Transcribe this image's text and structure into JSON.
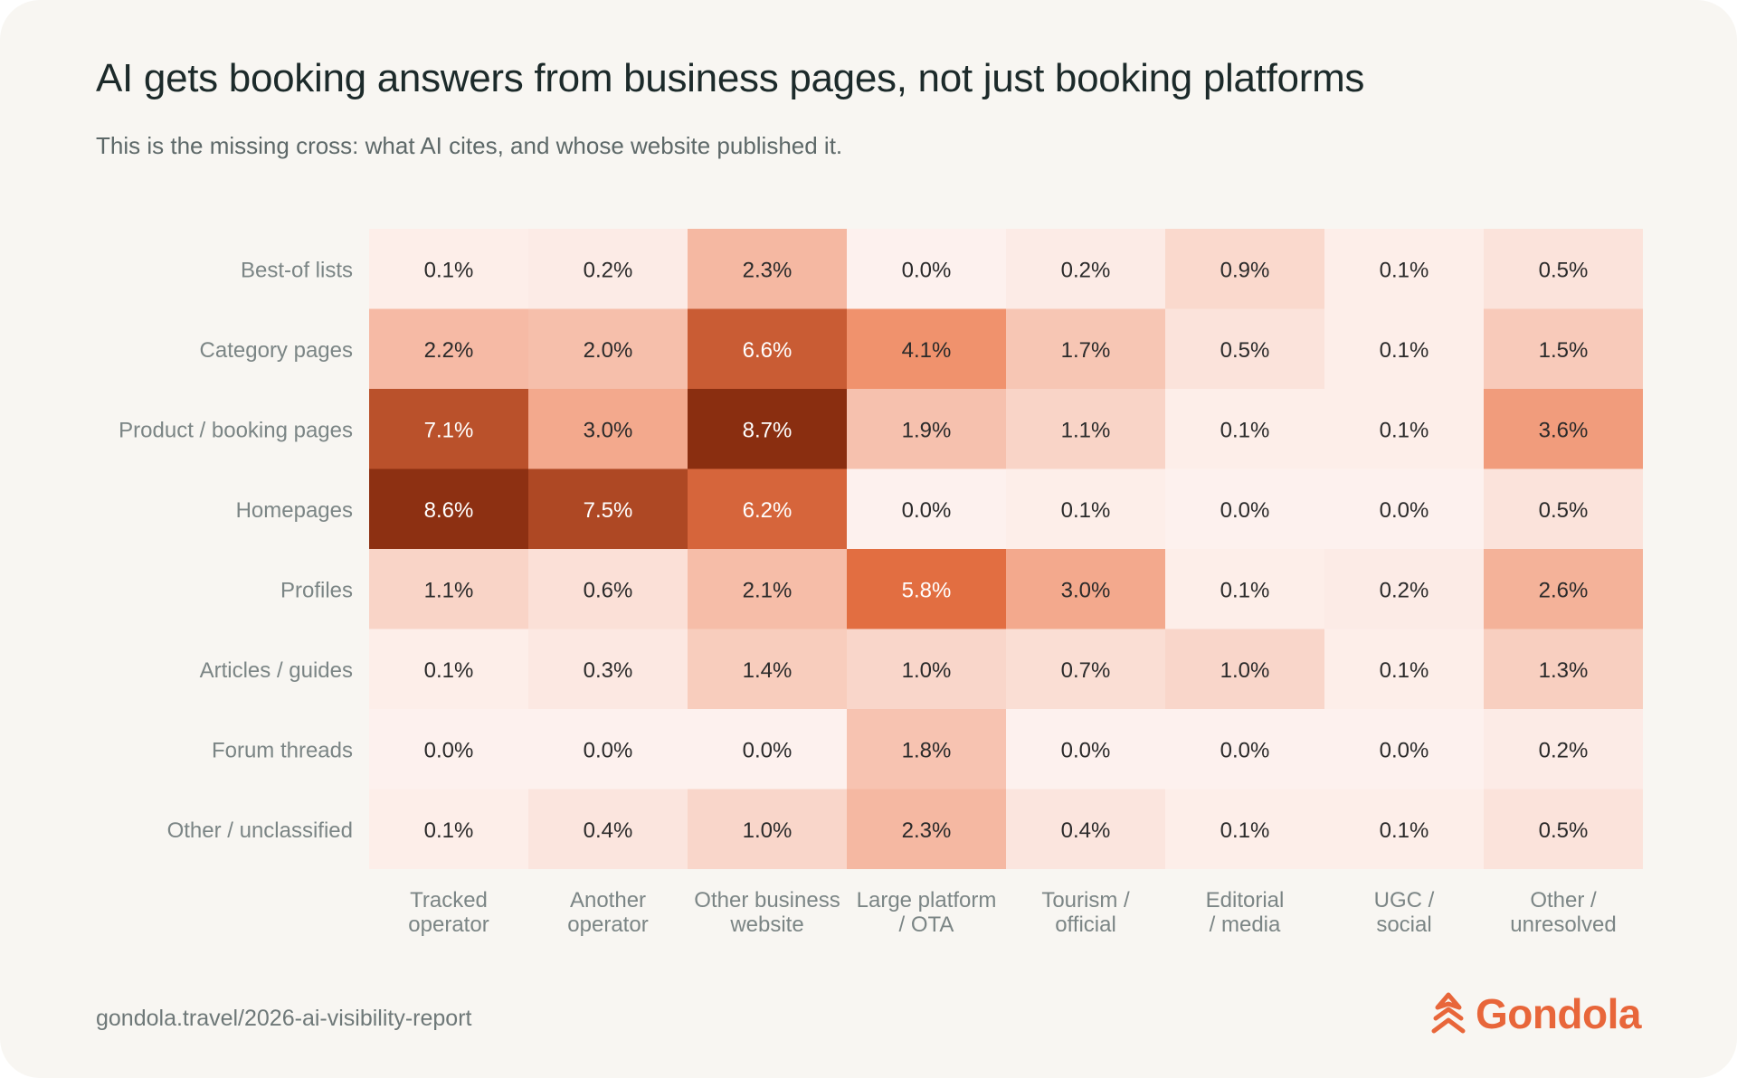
{
  "header": {
    "title": "AI gets booking answers from business pages, not just booking platforms",
    "subtitle": "This is the missing cross: what AI cites, and whose website published it."
  },
  "footer": {
    "url": "gondola.travel/2026-ai-visibility-report",
    "brand": "Gondola",
    "brand_icon": "gondola-logo-icon"
  },
  "colors": {
    "low": "#fdf1ee",
    "mid": "#ec7547",
    "high": "#8a2e10",
    "accent": "#e8663a"
  },
  "chart_data": {
    "type": "heatmap",
    "title": "AI gets booking answers from business pages, not just booking platforms",
    "subtitle": "This is the missing cross: what AI cites, and whose website published it.",
    "value_unit": "%",
    "rows": [
      "Best-of lists",
      "Category pages",
      "Product / booking pages",
      "Homepages",
      "Profiles",
      "Articles / guides",
      "Forum threads",
      "Other / unclassified"
    ],
    "columns": [
      [
        "Tracked",
        "operator"
      ],
      [
        "Another",
        "operator"
      ],
      [
        "Other business",
        "website"
      ],
      [
        "Large platform",
        "/ OTA"
      ],
      [
        "Tourism /",
        "official"
      ],
      [
        "Editorial",
        "/ media"
      ],
      [
        "UGC /",
        "social"
      ],
      [
        "Other /",
        "unresolved"
      ]
    ],
    "values": [
      [
        0.1,
        0.2,
        2.3,
        0.0,
        0.2,
        0.9,
        0.1,
        0.5
      ],
      [
        2.2,
        2.0,
        6.6,
        4.1,
        1.7,
        0.5,
        0.1,
        1.5
      ],
      [
        7.1,
        3.0,
        8.7,
        1.9,
        1.1,
        0.1,
        0.1,
        3.6
      ],
      [
        8.6,
        7.5,
        6.2,
        0.0,
        0.1,
        0.0,
        0.0,
        0.5
      ],
      [
        1.1,
        0.6,
        2.1,
        5.8,
        3.0,
        0.1,
        0.2,
        2.6
      ],
      [
        0.1,
        0.3,
        1.4,
        1.0,
        0.7,
        1.0,
        0.1,
        1.3
      ],
      [
        0.0,
        0.0,
        0.0,
        1.8,
        0.0,
        0.0,
        0.0,
        0.2
      ],
      [
        0.1,
        0.4,
        1.0,
        2.3,
        0.4,
        0.1,
        0.1,
        0.5
      ]
    ],
    "color_range": [
      0,
      8.7
    ],
    "grid": false,
    "legend": "none"
  }
}
